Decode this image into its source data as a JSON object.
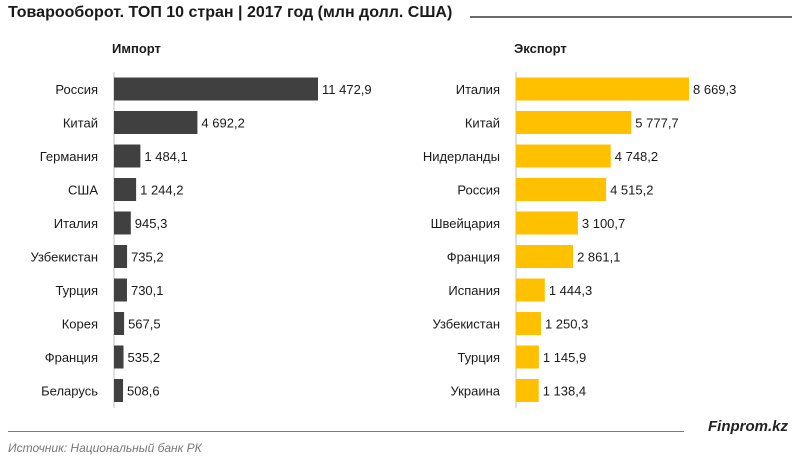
{
  "title": "Товарооборот. ТОП 10 стран | 2017 год (млн долл. США)",
  "brand": "Finprom.kz",
  "source": "Источник:  Национальный банк РК",
  "chart_data": [
    {
      "type": "bar",
      "orientation": "horizontal",
      "title": "Импорт",
      "color": "#404040",
      "categories": [
        "Россия",
        "Китай",
        "Германия",
        "США",
        "Италия",
        "Узбекистан",
        "Турция",
        "Корея",
        "Франция",
        "Беларусь"
      ],
      "values": [
        11472.9,
        4692.2,
        1484.1,
        1244.2,
        945.3,
        735.2,
        730.1,
        567.5,
        535.2,
        508.6
      ],
      "value_labels": [
        "11 472,9",
        "4 692,2",
        "1 484,1",
        "1 244,2",
        "945,3",
        "735,2",
        "730,1",
        "567,5",
        "535,2",
        "508,6"
      ]
    },
    {
      "type": "bar",
      "orientation": "horizontal",
      "title": "Экспорт",
      "color": "#FFC000",
      "categories": [
        "Италия",
        "Китай",
        "Нидерланды",
        "Россия",
        "Швейцария",
        "Франция",
        "Испания",
        "Узбекистан",
        "Турция",
        "Украина"
      ],
      "values": [
        8669.3,
        5777.7,
        4748.2,
        4515.2,
        3100.7,
        2861.1,
        1444.3,
        1250.3,
        1145.9,
        1138.4
      ],
      "value_labels": [
        "8 669,3",
        "5 777,7",
        "4 748,2",
        "4 515,2",
        "3 100,7",
        "2 861,1",
        "1 444,3",
        "1 250,3",
        "1 145,9",
        "1 138,4"
      ]
    }
  ]
}
